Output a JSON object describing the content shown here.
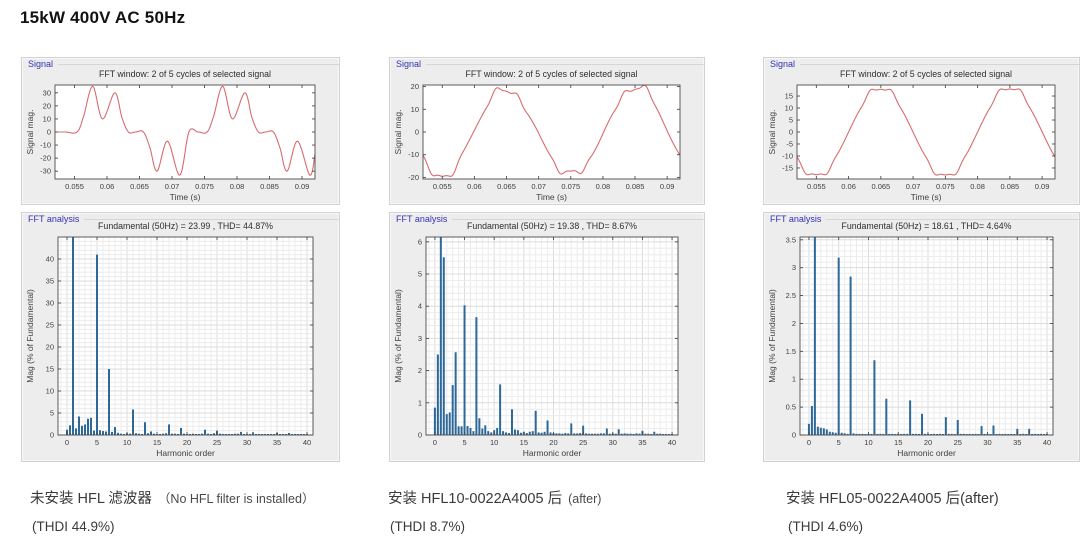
{
  "page_title": "15kW 400V AC 50Hz",
  "colors": {
    "waveform_red": "#d96b6e",
    "bar_blue": "#2d6898",
    "panel_label_blue": "#3232b4",
    "panel_background": "#ededed",
    "axis_gray": "#4a4a4a"
  },
  "captions": [
    {
      "line1_main": "未安装 HFL 滤波器",
      "line1_note": "（No HFL filter is installed）",
      "line2": "(THDI 44.9%)"
    },
    {
      "line1_main": "安装 HFL10-0022A4005 后",
      "line1_note": "(after)",
      "line2": "(THDI 8.7%)"
    },
    {
      "line1_main": "安装 HFL05-0022A4005 后(after)",
      "line1_note": "",
      "line2": "(THDI 4.6%)"
    }
  ],
  "chart_data": [
    {
      "type": "line",
      "panel_label": "Signal",
      "title": "FFT window: 2 of 5 cycles of selected signal",
      "xlabel": "Time (s)",
      "ylabel": "Signal mag.",
      "xlim": [
        0.052,
        0.092
      ],
      "ylim": [
        -36,
        36
      ],
      "xticks": [
        0.055,
        0.06,
        0.065,
        0.07,
        0.075,
        0.08,
        0.085,
        0.09
      ],
      "yticks": [
        -30,
        -20,
        -10,
        0,
        10,
        20,
        30
      ],
      "line_color": "#d96b6e",
      "waveform": {
        "mode": "keypoints",
        "t0": 0.052,
        "period_ms": 20,
        "points_ms": [
          [
            0,
            0
          ],
          [
            1.6,
            0
          ],
          [
            3.4,
            0
          ],
          [
            4.4,
            12
          ],
          [
            5.8,
            35
          ],
          [
            7.3,
            10
          ],
          [
            9.2,
            30
          ],
          [
            10.3,
            11
          ],
          [
            11.3,
            0
          ],
          [
            12.4,
            0
          ],
          [
            13.6,
            0
          ],
          [
            14.6,
            -12
          ],
          [
            15.7,
            -30
          ],
          [
            17.3,
            -7
          ],
          [
            19.2,
            -33
          ],
          [
            20.6,
            0
          ],
          [
            22,
            0
          ],
          [
            23.4,
            0
          ],
          [
            24.4,
            12
          ],
          [
            25.8,
            35
          ],
          [
            27.3,
            10
          ],
          [
            29.2,
            30
          ],
          [
            30.3,
            11
          ],
          [
            31.3,
            0
          ],
          [
            32.4,
            0
          ],
          [
            33.6,
            0
          ],
          [
            34.6,
            -12
          ],
          [
            35.7,
            -30
          ],
          [
            37.3,
            -7
          ],
          [
            39.2,
            -33
          ],
          [
            40,
            -17
          ]
        ]
      }
    },
    {
      "type": "bar",
      "panel_label": "FFT analysis",
      "title": "Fundamental (50Hz) = 23.99 , THD= 44.87%",
      "fundamental_50hz": 23.99,
      "thd_percent": 44.87,
      "xlabel": "Harmonic order",
      "ylabel": "Mag (% of Fundamental)",
      "xlim": [
        -1.5,
        41
      ],
      "ylim": [
        0,
        45
      ],
      "xticks": [
        0,
        5,
        10,
        15,
        20,
        25,
        30,
        35,
        40
      ],
      "yticks": [
        0,
        5,
        10,
        15,
        20,
        25,
        30,
        35,
        40
      ],
      "minor_x": 1,
      "minor_y": 1,
      "bar_color": "#2d6898",
      "bars": [
        [
          0,
          1.2
        ],
        [
          0.5,
          2.2
        ],
        [
          1,
          100
        ],
        [
          1.5,
          1.5
        ],
        [
          2,
          4.2
        ],
        [
          2.5,
          2.1
        ],
        [
          3,
          2.4
        ],
        [
          3.5,
          3.7
        ],
        [
          4,
          3.9
        ],
        [
          4.5,
          1.0
        ],
        [
          5,
          41
        ],
        [
          5.5,
          1.1
        ],
        [
          6,
          0.9
        ],
        [
          6.5,
          0.8
        ],
        [
          7,
          15
        ],
        [
          7.5,
          0.7
        ],
        [
          8,
          1.8
        ],
        [
          8.5,
          0.5
        ],
        [
          9,
          0.3
        ],
        [
          9.5,
          0.2
        ],
        [
          10,
          0.4
        ],
        [
          10.5,
          0.3
        ],
        [
          11,
          5.8
        ],
        [
          11.5,
          0.4
        ],
        [
          12,
          0.3
        ],
        [
          12.5,
          0.2
        ],
        [
          13,
          2.9
        ],
        [
          13.5,
          0.4
        ],
        [
          14,
          0.8
        ],
        [
          14.5,
          0.3
        ],
        [
          15,
          0.2
        ],
        [
          15.5,
          0.2
        ],
        [
          16,
          0.3
        ],
        [
          16.5,
          0.4
        ],
        [
          17,
          2.4
        ],
        [
          17.5,
          0.3
        ],
        [
          18,
          0.3
        ],
        [
          18.5,
          0.2
        ],
        [
          19,
          1.6
        ],
        [
          19.5,
          0.3
        ],
        [
          20,
          0.2
        ],
        [
          20.5,
          0.2
        ],
        [
          21,
          0.3
        ],
        [
          21.5,
          0.2
        ],
        [
          22,
          0.2
        ],
        [
          22.5,
          0.3
        ],
        [
          23,
          1.2
        ],
        [
          23.5,
          0.3
        ],
        [
          24,
          0.2
        ],
        [
          24.5,
          0.4
        ],
        [
          25,
          1.0
        ],
        [
          25.5,
          0.3
        ],
        [
          26,
          0.2
        ],
        [
          26.5,
          0.2
        ],
        [
          27,
          0.2
        ],
        [
          27.5,
          0.2
        ],
        [
          28,
          0.3
        ],
        [
          28.5,
          0.3
        ],
        [
          29,
          0.7
        ],
        [
          29.5,
          0.2
        ],
        [
          30,
          0.2
        ],
        [
          30.5,
          0.2
        ],
        [
          31,
          0.6
        ],
        [
          31.5,
          0.2
        ],
        [
          32,
          0.2
        ],
        [
          32.5,
          0.2
        ],
        [
          33,
          0.2
        ],
        [
          33.5,
          0.1
        ],
        [
          34,
          0.2
        ],
        [
          34.5,
          0.2
        ],
        [
          35,
          0.45
        ],
        [
          35.5,
          0.2
        ],
        [
          36,
          0.1
        ],
        [
          36.5,
          0.1
        ],
        [
          37,
          0.45
        ],
        [
          37.5,
          0.2
        ],
        [
          38,
          0.1
        ],
        [
          38.5,
          0.1
        ],
        [
          39,
          0.1
        ],
        [
          39.5,
          0.1
        ],
        [
          40,
          0.1
        ]
      ]
    },
    {
      "type": "line",
      "panel_label": "Signal",
      "title": "FFT window: 2 of 5 cycles of selected signal",
      "xlabel": "Time (s)",
      "ylabel": "Signal mag.",
      "xlim": [
        0.052,
        0.092
      ],
      "ylim": [
        -20.7,
        20.7
      ],
      "xticks": [
        0.055,
        0.06,
        0.065,
        0.07,
        0.075,
        0.08,
        0.085,
        0.09
      ],
      "yticks": [
        -20,
        -10,
        0,
        10,
        20
      ],
      "line_color": "#d96b6e",
      "waveform": {
        "mode": "fourier",
        "f": 50,
        "t_ref": 0.06,
        "fund": 19.38,
        "harmonics": [
          [
            1,
            100,
            0
          ],
          [
            0.5,
            2.5,
            180
          ],
          [
            1.5,
            5.5,
            60
          ],
          [
            3.5,
            2.6,
            200
          ],
          [
            5,
            4.03,
            180
          ],
          [
            7,
            3.66,
            0
          ],
          [
            11,
            1.57,
            180
          ],
          [
            13,
            0.8,
            0
          ]
        ]
      }
    },
    {
      "type": "bar",
      "panel_label": "FFT analysis",
      "title": "Fundamental (50Hz) = 19.38 , THD= 8.67%",
      "fundamental_50hz": 19.38,
      "thd_percent": 8.67,
      "xlabel": "Harmonic order",
      "ylabel": "Mag (% of Fundamental)",
      "xlim": [
        -1.5,
        41
      ],
      "ylim": [
        0,
        6.15
      ],
      "xticks": [
        0,
        5,
        10,
        15,
        20,
        25,
        30,
        35,
        40
      ],
      "yticks": [
        0,
        1,
        2,
        3,
        4,
        5,
        6
      ],
      "minor_x": 1,
      "minor_y": 0.2,
      "bar_color": "#2d6898",
      "bars": [
        [
          0,
          0.85
        ],
        [
          0.5,
          2.5
        ],
        [
          1,
          100
        ],
        [
          1.5,
          5.52
        ],
        [
          2,
          0.65
        ],
        [
          2.5,
          0.7
        ],
        [
          3,
          1.55
        ],
        [
          3.5,
          2.57
        ],
        [
          4,
          0.27
        ],
        [
          4.5,
          0.27
        ],
        [
          5,
          4.03
        ],
        [
          5.5,
          0.28
        ],
        [
          6,
          0.22
        ],
        [
          6.5,
          0.12
        ],
        [
          7,
          3.66
        ],
        [
          7.5,
          0.52
        ],
        [
          8,
          0.2
        ],
        [
          8.5,
          0.3
        ],
        [
          9,
          0.12
        ],
        [
          9.5,
          0.08
        ],
        [
          10,
          0.15
        ],
        [
          10.5,
          0.22
        ],
        [
          11,
          1.57
        ],
        [
          11.5,
          0.12
        ],
        [
          12,
          0.08
        ],
        [
          12.5,
          0.06
        ],
        [
          13,
          0.8
        ],
        [
          13.5,
          0.17
        ],
        [
          14,
          0.15
        ],
        [
          14.5,
          0.07
        ],
        [
          15,
          0.1
        ],
        [
          15.5,
          0.06
        ],
        [
          16,
          0.1
        ],
        [
          16.5,
          0.12
        ],
        [
          17,
          0.75
        ],
        [
          17.5,
          0.08
        ],
        [
          18,
          0.07
        ],
        [
          18.5,
          0.1
        ],
        [
          19,
          0.45
        ],
        [
          19.5,
          0.08
        ],
        [
          20,
          0.06
        ],
        [
          20.5,
          0.05
        ],
        [
          21,
          0.05
        ],
        [
          21.5,
          0.04
        ],
        [
          22,
          0.06
        ],
        [
          22.5,
          0.05
        ],
        [
          23,
          0.36
        ],
        [
          23.5,
          0.05
        ],
        [
          24,
          0.05
        ],
        [
          24.5,
          0.06
        ],
        [
          25,
          0.29
        ],
        [
          25.5,
          0.05
        ],
        [
          26,
          0.04
        ],
        [
          26.5,
          0.04
        ],
        [
          27,
          0.04
        ],
        [
          27.5,
          0.04
        ],
        [
          28,
          0.05
        ],
        [
          28.5,
          0.05
        ],
        [
          29,
          0.2
        ],
        [
          29.5,
          0.04
        ],
        [
          30,
          0.05
        ],
        [
          30.5,
          0.04
        ],
        [
          31,
          0.18
        ],
        [
          31.5,
          0.04
        ],
        [
          32,
          0.05
        ],
        [
          32.5,
          0.04
        ],
        [
          33,
          0.04
        ],
        [
          33.5,
          0.03
        ],
        [
          34,
          0.05
        ],
        [
          34.5,
          0.04
        ],
        [
          35,
          0.13
        ],
        [
          35.5,
          0.04
        ],
        [
          36,
          0.04
        ],
        [
          36.5,
          0.03
        ],
        [
          37,
          0.1
        ],
        [
          37.5,
          0.04
        ],
        [
          38,
          0.04
        ],
        [
          38.5,
          0.03
        ],
        [
          39,
          0.03
        ],
        [
          39.5,
          0.03
        ],
        [
          40,
          0.03
        ]
      ]
    },
    {
      "type": "line",
      "panel_label": "Signal",
      "title": "FFT window: 2 of 5 cycles of selected signal",
      "xlabel": "Time (s)",
      "ylabel": "Signal mag.",
      "xlim": [
        0.052,
        0.092
      ],
      "ylim": [
        -19.6,
        19.6
      ],
      "xticks": [
        0.055,
        0.06,
        0.065,
        0.07,
        0.075,
        0.08,
        0.085,
        0.09
      ],
      "yticks": [
        -15,
        -10,
        -5,
        0,
        5,
        10,
        15
      ],
      "line_color": "#d96b6e",
      "waveform": {
        "mode": "fourier",
        "f": 50,
        "t_ref": 0.06,
        "fund": 18.61,
        "harmonics": [
          [
            1,
            100,
            0
          ],
          [
            0.5,
            0.5,
            180
          ],
          [
            5,
            3.18,
            180
          ],
          [
            7,
            2.84,
            0
          ],
          [
            11,
            1.34,
            180
          ],
          [
            13,
            0.65,
            0
          ]
        ]
      }
    },
    {
      "type": "bar",
      "panel_label": "FFT analysis",
      "title": "Fundamental (50Hz) = 18.61 , THD= 4.64%",
      "fundamental_50hz": 18.61,
      "thd_percent": 4.64,
      "xlabel": "Harmonic order",
      "ylabel": "Mag (% of Fundamental)",
      "xlim": [
        -1.5,
        41
      ],
      "ylim": [
        0,
        3.55
      ],
      "xticks": [
        0,
        5,
        10,
        15,
        20,
        25,
        30,
        35,
        40
      ],
      "yticks": [
        0,
        0.5,
        1,
        1.5,
        2,
        2.5,
        3,
        3.5
      ],
      "minor_x": 1,
      "minor_y": 0.1,
      "bar_color": "#2d6898",
      "bars": [
        [
          0,
          0.2
        ],
        [
          0.5,
          0.52
        ],
        [
          1,
          100
        ],
        [
          1.5,
          0.15
        ],
        [
          2,
          0.13
        ],
        [
          2.5,
          0.12
        ],
        [
          3,
          0.1
        ],
        [
          3.5,
          0.06
        ],
        [
          4,
          0.05
        ],
        [
          4.5,
          0.04
        ],
        [
          5,
          3.18
        ],
        [
          5.5,
          0.04
        ],
        [
          6,
          0.03
        ],
        [
          6.5,
          0.02
        ],
        [
          7,
          2.84
        ],
        [
          7.5,
          0.03
        ],
        [
          8,
          0.02
        ],
        [
          8.5,
          0.02
        ],
        [
          9,
          0.02
        ],
        [
          9.5,
          0.01
        ],
        [
          10,
          0.02
        ],
        [
          10.5,
          0.02
        ],
        [
          11,
          1.34
        ],
        [
          11.5,
          0.02
        ],
        [
          12,
          0.02
        ],
        [
          12.5,
          0.01
        ],
        [
          13,
          0.65
        ],
        [
          13.5,
          0.02
        ],
        [
          14,
          0.02
        ],
        [
          14.5,
          0.01
        ],
        [
          15,
          0.02
        ],
        [
          15.5,
          0.01
        ],
        [
          16,
          0.02
        ],
        [
          16.5,
          0.02
        ],
        [
          17,
          0.62
        ],
        [
          17.5,
          0.02
        ],
        [
          18,
          0.02
        ],
        [
          18.5,
          0.01
        ],
        [
          19,
          0.38
        ],
        [
          19.5,
          0.02
        ],
        [
          20,
          0.02
        ],
        [
          20.5,
          0.01
        ],
        [
          21,
          0.02
        ],
        [
          21.5,
          0.01
        ],
        [
          22,
          0.02
        ],
        [
          22.5,
          0.01
        ],
        [
          23,
          0.32
        ],
        [
          23.5,
          0.02
        ],
        [
          24,
          0.02
        ],
        [
          24.5,
          0.01
        ],
        [
          25,
          0.27
        ],
        [
          25.5,
          0.02
        ],
        [
          26,
          0.02
        ],
        [
          26.5,
          0.01
        ],
        [
          27,
          0.02
        ],
        [
          27.5,
          0.01
        ],
        [
          28,
          0.02
        ],
        [
          28.5,
          0.01
        ],
        [
          29,
          0.16
        ],
        [
          29.5,
          0.02
        ],
        [
          30,
          0.02
        ],
        [
          30.5,
          0.01
        ],
        [
          31,
          0.17
        ],
        [
          31.5,
          0.01
        ],
        [
          32,
          0.02
        ],
        [
          32.5,
          0.01
        ],
        [
          33,
          0.02
        ],
        [
          33.5,
          0.01
        ],
        [
          34,
          0.02
        ],
        [
          34.5,
          0.01
        ],
        [
          35,
          0.11
        ],
        [
          35.5,
          0.01
        ],
        [
          36,
          0.02
        ],
        [
          36.5,
          0.01
        ],
        [
          37,
          0.11
        ],
        [
          37.5,
          0.01
        ],
        [
          38,
          0.02
        ],
        [
          38.5,
          0.01
        ],
        [
          39,
          0.02
        ],
        [
          39.5,
          0.01
        ],
        [
          40,
          0.02
        ]
      ]
    }
  ]
}
